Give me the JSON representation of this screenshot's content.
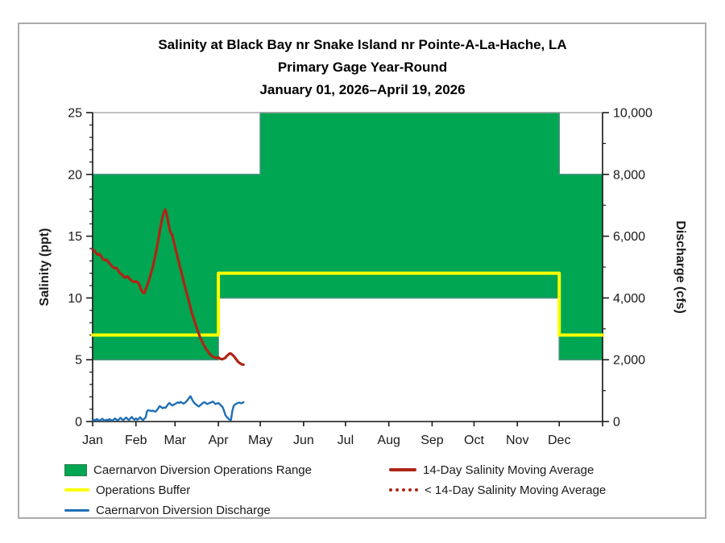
{
  "figure": {
    "title_lines": [
      "Salinity at Black Bay nr Snake Island nr Pointe-A-La-Hache, LA",
      "Primary Gage Year-Round",
      "January 01, 2026–April 19, 2026"
    ]
  },
  "legend": {
    "items": [
      {
        "label": "Caernarvon Diversion Operations Range",
        "swatch": "area",
        "color": "#00a651",
        "border": "#2e7d4f"
      },
      {
        "label": "Operations Buffer",
        "swatch": "line",
        "color": "#fcff00"
      },
      {
        "label": "Caernarvon Diversion Discharge",
        "swatch": "line",
        "color": "#1f6fb5"
      },
      {
        "label": "14-Day Salinity Moving Average",
        "swatch": "line",
        "color": "#ae2516"
      },
      {
        "label": "< 14-Day Salinity Moving Average",
        "swatch": "dotted",
        "color": "#ae2516"
      }
    ]
  },
  "chart_data": {
    "type": "area+line combo",
    "title": "Salinity at Black Bay nr Snake Island nr Pointe-A-La-Hache, LA — Primary Gage Year-Round — January 01, 2026–April 19, 2026",
    "grid": "off",
    "x_axis": {
      "labels": [
        "Jan",
        "Feb",
        "Mar",
        "Apr",
        "May",
        "Jun",
        "Jul",
        "Aug",
        "Sep",
        "Oct",
        "Nov",
        "Dec"
      ],
      "month_start_days": [
        0,
        31,
        59,
        90,
        120,
        151,
        181,
        212,
        243,
        273,
        304,
        334
      ],
      "days_total": 365
    },
    "y_left": {
      "label": "Salinity (ppt)",
      "min": 0,
      "max": 25,
      "major_tick_values": [
        0,
        5,
        10,
        15,
        20,
        25
      ],
      "major_tick_labels": [
        "0",
        "5",
        "10",
        "15",
        "20",
        "25"
      ],
      "minor_step": 1
    },
    "y_right": {
      "label": "Discharge (cfs)",
      "min": 0,
      "max": 10000,
      "major_tick_values": [
        0,
        2000,
        4000,
        6000,
        8000,
        10000
      ],
      "major_tick_labels": [
        "0",
        "2,000",
        "4,000",
        "6,000",
        "8,000",
        "10,000"
      ],
      "minor_step": 1000
    },
    "series": [
      {
        "name": "Caernarvon Diversion Operations Range",
        "type": "band",
        "axis": "left",
        "color": "#00a651",
        "border_color": "#45927d",
        "segments": [
          {
            "start_day": 0,
            "end_day": 90,
            "low": 5,
            "high": 20
          },
          {
            "start_day": 90,
            "end_day": 120,
            "low": 10,
            "high": 20
          },
          {
            "start_day": 120,
            "end_day": 334,
            "low": 10,
            "high": 25
          },
          {
            "start_day": 334,
            "end_day": 365,
            "low": 5,
            "high": 20
          }
        ]
      },
      {
        "name": "Operations Buffer",
        "type": "step-line",
        "axis": "left",
        "color": "#fcff00",
        "width": 4,
        "points": [
          [
            0,
            7
          ],
          [
            90,
            7
          ],
          [
            90,
            12
          ],
          [
            334,
            12
          ],
          [
            334,
            7
          ],
          [
            365,
            7
          ]
        ]
      },
      {
        "name": "Caernarvon Diversion Discharge",
        "type": "line",
        "axis": "right",
        "color": "#1f6fb5",
        "width": 2.4,
        "points": [
          [
            0,
            30
          ],
          [
            1,
            60
          ],
          [
            2,
            40
          ],
          [
            3,
            80
          ],
          [
            4,
            50
          ],
          [
            5,
            30
          ],
          [
            6,
            60
          ],
          [
            7,
            90
          ],
          [
            8,
            50
          ],
          [
            9,
            30
          ],
          [
            10,
            60
          ],
          [
            11,
            40
          ],
          [
            12,
            80
          ],
          [
            13,
            50
          ],
          [
            14,
            30
          ],
          [
            15,
            60
          ],
          [
            16,
            100
          ],
          [
            17,
            60
          ],
          [
            18,
            40
          ],
          [
            19,
            80
          ],
          [
            20,
            120
          ],
          [
            21,
            70
          ],
          [
            22,
            50
          ],
          [
            23,
            90
          ],
          [
            24,
            130
          ],
          [
            25,
            80
          ],
          [
            26,
            50
          ],
          [
            27,
            100
          ],
          [
            28,
            150
          ],
          [
            29,
            90
          ],
          [
            30,
            60
          ],
          [
            31,
            100
          ],
          [
            32,
            60
          ],
          [
            33,
            90
          ],
          [
            34,
            140
          ],
          [
            35,
            80
          ],
          [
            36,
            50
          ],
          [
            37,
            90
          ],
          [
            38,
            140
          ],
          [
            39,
            340
          ],
          [
            40,
            370
          ],
          [
            41,
            350
          ],
          [
            42,
            340
          ],
          [
            43,
            355
          ],
          [
            44,
            330
          ],
          [
            45,
            320
          ],
          [
            46,
            370
          ],
          [
            47,
            430
          ],
          [
            48,
            500
          ],
          [
            49,
            470
          ],
          [
            50,
            430
          ],
          [
            51,
            455
          ],
          [
            52,
            440
          ],
          [
            53,
            490
          ],
          [
            54,
            560
          ],
          [
            55,
            600
          ],
          [
            56,
            555
          ],
          [
            57,
            520
          ],
          [
            58,
            545
          ],
          [
            59,
            565
          ],
          [
            60,
            595
          ],
          [
            61,
            620
          ],
          [
            62,
            600
          ],
          [
            63,
            635
          ],
          [
            64,
            605
          ],
          [
            65,
            580
          ],
          [
            66,
            605
          ],
          [
            67,
            645
          ],
          [
            68,
            700
          ],
          [
            69,
            760
          ],
          [
            70,
            820
          ],
          [
            71,
            730
          ],
          [
            72,
            650
          ],
          [
            73,
            590
          ],
          [
            74,
            555
          ],
          [
            75,
            515
          ],
          [
            76,
            485
          ],
          [
            77,
            525
          ],
          [
            78,
            565
          ],
          [
            79,
            605
          ],
          [
            80,
            625
          ],
          [
            81,
            600
          ],
          [
            82,
            565
          ],
          [
            83,
            585
          ],
          [
            84,
            605
          ],
          [
            85,
            625
          ],
          [
            86,
            645
          ],
          [
            87,
            605
          ],
          [
            88,
            565
          ],
          [
            89,
            585
          ],
          [
            90,
            600
          ],
          [
            91,
            560
          ],
          [
            92,
            515
          ],
          [
            93,
            470
          ],
          [
            94,
            355
          ],
          [
            95,
            210
          ],
          [
            96,
            150
          ],
          [
            97,
            105
          ],
          [
            98,
            60
          ],
          [
            99,
            50
          ],
          [
            100,
            340
          ],
          [
            101,
            510
          ],
          [
            102,
            555
          ],
          [
            103,
            580
          ],
          [
            104,
            600
          ],
          [
            105,
            615
          ],
          [
            106,
            590
          ],
          [
            107,
            600
          ],
          [
            108,
            625
          ]
        ]
      },
      {
        "name": "14-Day Salinity Moving Average",
        "type": "line",
        "axis": "left",
        "color": "#ae2516",
        "width": 3.2,
        "points": [
          [
            0,
            13.9
          ],
          [
            1,
            13.85
          ],
          [
            2,
            13.7
          ],
          [
            3,
            13.55
          ],
          [
            4,
            13.5
          ],
          [
            5,
            13.55
          ],
          [
            6,
            13.4
          ],
          [
            7,
            13.2
          ],
          [
            8,
            13.1
          ],
          [
            9,
            13.05
          ],
          [
            10,
            13.1
          ],
          [
            11,
            12.95
          ],
          [
            12,
            12.8
          ],
          [
            13,
            12.7
          ],
          [
            14,
            12.55
          ],
          [
            15,
            12.45
          ],
          [
            16,
            12.4
          ],
          [
            17,
            12.45
          ],
          [
            18,
            12.25
          ],
          [
            19,
            12.1
          ],
          [
            20,
            11.95
          ],
          [
            21,
            11.9
          ],
          [
            22,
            11.75
          ],
          [
            23,
            11.65
          ],
          [
            24,
            11.7
          ],
          [
            25,
            11.75
          ],
          [
            26,
            11.6
          ],
          [
            27,
            11.5
          ],
          [
            28,
            11.4
          ],
          [
            29,
            11.3
          ],
          [
            30,
            11.3
          ],
          [
            31,
            11.35
          ],
          [
            32,
            11.3
          ],
          [
            33,
            11.15
          ],
          [
            34,
            10.9
          ],
          [
            35,
            10.6
          ],
          [
            36,
            10.45
          ],
          [
            37,
            10.4
          ],
          [
            38,
            10.7
          ],
          [
            39,
            11.0
          ],
          [
            40,
            11.3
          ],
          [
            41,
            11.7
          ],
          [
            42,
            12.1
          ],
          [
            43,
            12.5
          ],
          [
            44,
            13.0
          ],
          [
            45,
            13.5
          ],
          [
            46,
            14.1
          ],
          [
            47,
            14.7
          ],
          [
            48,
            15.4
          ],
          [
            49,
            16.0
          ],
          [
            50,
            16.5
          ],
          [
            51,
            16.95
          ],
          [
            52,
            17.15
          ],
          [
            53,
            16.8
          ],
          [
            54,
            16.2
          ],
          [
            55,
            15.6
          ],
          [
            56,
            15.25
          ],
          [
            57,
            15.1
          ],
          [
            58,
            14.6
          ],
          [
            59,
            14.1
          ],
          [
            60,
            13.65
          ],
          [
            61,
            13.2
          ],
          [
            62,
            12.75
          ],
          [
            63,
            12.3
          ],
          [
            64,
            11.85
          ],
          [
            65,
            11.4
          ],
          [
            66,
            10.95
          ],
          [
            67,
            10.5
          ],
          [
            68,
            10.1
          ],
          [
            69,
            9.7
          ],
          [
            70,
            9.25
          ],
          [
            71,
            8.8
          ],
          [
            72,
            8.45
          ],
          [
            73,
            8.1
          ],
          [
            74,
            7.75
          ],
          [
            75,
            7.4
          ],
          [
            76,
            7.1
          ],
          [
            77,
            6.8
          ],
          [
            78,
            6.55
          ],
          [
            79,
            6.3
          ],
          [
            80,
            6.1
          ],
          [
            81,
            5.9
          ],
          [
            82,
            5.75
          ],
          [
            83,
            5.6
          ],
          [
            84,
            5.45
          ],
          [
            85,
            5.35
          ],
          [
            86,
            5.25
          ],
          [
            87,
            5.2
          ],
          [
            88,
            5.15
          ],
          [
            89,
            5.15
          ],
          [
            90,
            5.2
          ],
          [
            91,
            5.1
          ],
          [
            92,
            5.05
          ],
          [
            93,
            5.05
          ],
          [
            94,
            5.1
          ],
          [
            95,
            5.15
          ],
          [
            96,
            5.3
          ],
          [
            97,
            5.4
          ],
          [
            98,
            5.5
          ],
          [
            99,
            5.5
          ],
          [
            100,
            5.4
          ],
          [
            101,
            5.3
          ],
          [
            102,
            5.15
          ],
          [
            103,
            5.0
          ],
          [
            104,
            4.85
          ],
          [
            105,
            4.75
          ],
          [
            106,
            4.68
          ],
          [
            107,
            4.62
          ],
          [
            108,
            4.6
          ]
        ]
      },
      {
        "name": "< 14-Day Salinity Moving Average",
        "type": "dotted-legend-only",
        "axis": "left",
        "color": "#ae2516",
        "points": []
      }
    ]
  }
}
